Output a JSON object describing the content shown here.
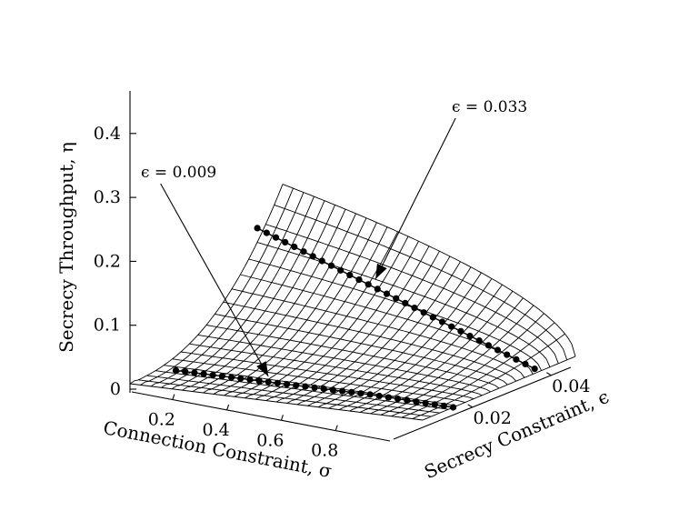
{
  "chart_data": {
    "type": "surface",
    "x_axis": {
      "label": "Connection Constraint, σ",
      "range": [
        0.05,
        1.0
      ],
      "ticks": [
        0.2,
        0.4,
        0.6,
        0.8
      ],
      "tick_labels": [
        "0.2",
        "0.4",
        "0.6",
        "0.8"
      ]
    },
    "y_axis": {
      "label": "Secrecy Constraint, ϵ",
      "range": [
        0,
        0.045
      ],
      "ticks": [
        0.02,
        0.04
      ],
      "tick_labels": [
        "0.02",
        "0.04"
      ]
    },
    "z_axis": {
      "label": "Secrecy Throughput, η",
      "range": [
        0,
        0.45
      ],
      "ticks": [
        0,
        0.1,
        0.2,
        0.3,
        0.4
      ],
      "tick_labels": [
        "0",
        "0.1",
        "0.2",
        "0.3",
        "0.4"
      ]
    },
    "surface": {
      "sigma_grid_count": 28,
      "epsilon_grid_count": 18,
      "epsilon_max": 0.045
    },
    "curves": [
      {
        "epsilon": 0.009,
        "sigma": [
          0.1,
          0.13,
          0.16,
          0.19,
          0.22,
          0.25,
          0.28,
          0.31,
          0.34,
          0.37,
          0.4,
          0.43,
          0.46,
          0.49,
          0.52,
          0.55,
          0.58,
          0.61,
          0.64,
          0.67,
          0.7,
          0.73,
          0.76,
          0.79,
          0.82,
          0.85,
          0.88,
          0.91,
          0.94,
          0.97,
          1.0
        ],
        "eta": [
          0.009,
          0.009,
          0.009,
          0.009,
          0.009,
          0.009,
          0.009,
          0.009,
          0.009,
          0.009,
          0.009,
          0.009,
          0.009,
          0.009,
          0.009,
          0.009,
          0.009,
          0.009,
          0.009,
          0.009,
          0.009,
          0.009,
          0.008,
          0.007,
          0.006,
          0.005,
          0.004,
          0.003,
          0.002,
          0.001,
          0.0
        ]
      },
      {
        "epsilon": 0.033,
        "sigma": [
          0.1,
          0.13,
          0.16,
          0.19,
          0.22,
          0.25,
          0.28,
          0.31,
          0.34,
          0.37,
          0.4,
          0.43,
          0.46,
          0.49,
          0.52,
          0.55,
          0.58,
          0.61,
          0.64,
          0.67,
          0.7,
          0.73,
          0.76,
          0.79,
          0.82,
          0.85,
          0.88,
          0.91,
          0.94,
          0.97,
          1.0
        ],
        "eta": [
          0.407,
          0.394,
          0.381,
          0.368,
          0.355,
          0.342,
          0.329,
          0.316,
          0.303,
          0.29,
          0.277,
          0.264,
          0.251,
          0.238,
          0.225,
          0.212,
          0.199,
          0.186,
          0.173,
          0.16,
          0.147,
          0.134,
          0.121,
          0.108,
          0.095,
          0.082,
          0.069,
          0.056,
          0.043,
          0.03,
          0.017
        ]
      }
    ],
    "annotations": [
      {
        "text": "ϵ = 0.009",
        "points_to_epsilon": 0.009,
        "points_to_sigma": 0.4
      },
      {
        "text": "ϵ = 0.033",
        "points_to_epsilon": 0.033,
        "points_to_sigma": 0.46
      }
    ],
    "grid": false,
    "legend": "none"
  }
}
